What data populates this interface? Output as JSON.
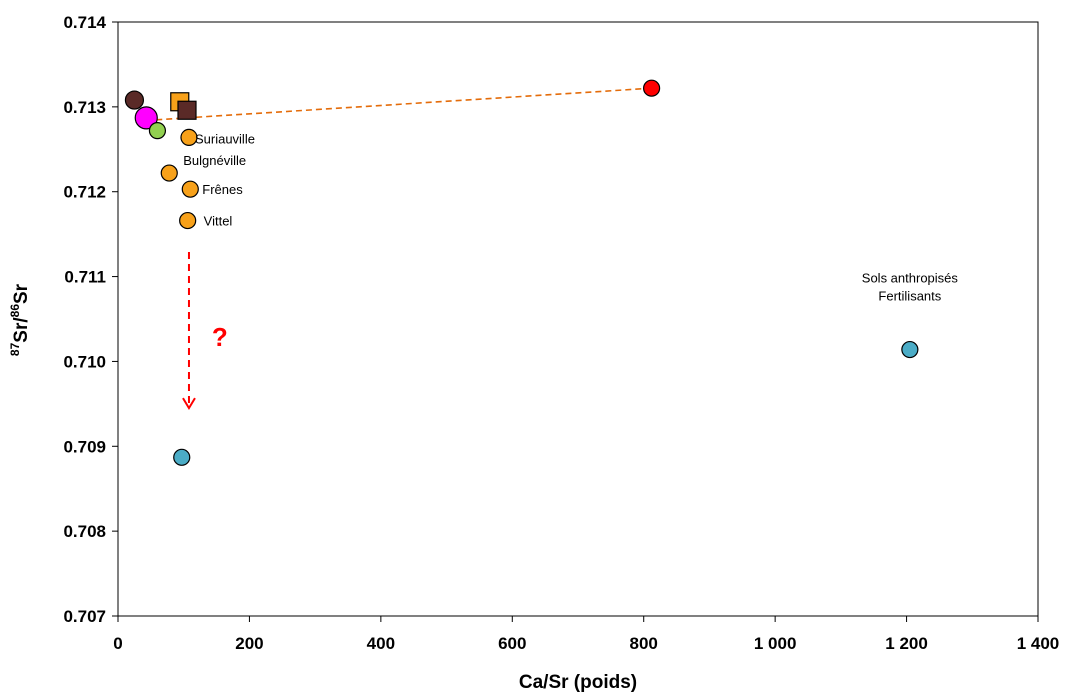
{
  "chart_data": {
    "type": "scatter",
    "title": "",
    "xlabel": "Ca/Sr (poids)",
    "ylabel_parts": {
      "sup1": "87",
      "main1": "Sr/",
      "sup2": "86",
      "main2": "Sr"
    },
    "xlim": [
      0,
      1400
    ],
    "ylim": [
      0.707,
      0.714
    ],
    "x_ticks": [
      0,
      200,
      400,
      600,
      800,
      1000,
      1200,
      1400
    ],
    "x_tick_labels": [
      "0",
      "200",
      "400",
      "600",
      "800",
      "1 000",
      "1 200",
      "1 400"
    ],
    "y_ticks": [
      0.707,
      0.708,
      0.709,
      0.71,
      0.711,
      0.712,
      0.713,
      0.714
    ],
    "y_tick_labels": [
      "0.707",
      "0.708",
      "0.709",
      "0.710",
      "0.711",
      "0.712",
      "0.713",
      "0.714"
    ],
    "grid": false,
    "colors": {
      "orange": "#f7a11a",
      "dark_brown": "#5a2a27",
      "green": "#92d050",
      "magenta": "#ff00ff",
      "red": "#ff0000",
      "teal": "#4bacc6",
      "mixing_line": "#e46c0a",
      "arrow": "#ff0000"
    },
    "points": [
      {
        "x": 25,
        "y": 0.71308,
        "shape": "circle",
        "color": "#5a2a27",
        "size": 9
      },
      {
        "x": 94,
        "y": 0.71306,
        "shape": "square",
        "color": "#f7a11a",
        "size": 9
      },
      {
        "x": 105,
        "y": 0.71296,
        "shape": "square",
        "color": "#5a2a27",
        "size": 9
      },
      {
        "x": 43,
        "y": 0.71287,
        "shape": "circle",
        "color": "#ff00ff",
        "size": 11
      },
      {
        "x": 60,
        "y": 0.71272,
        "shape": "circle",
        "color": "#92d050",
        "size": 8
      },
      {
        "x": 108,
        "y": 0.71264,
        "shape": "circle",
        "color": "#f7a11a",
        "size": 8,
        "label": "Suriauville"
      },
      {
        "x": 78,
        "y": 0.71222,
        "shape": "circle",
        "color": "#f7a11a",
        "size": 8,
        "label": "Bulgnéville"
      },
      {
        "x": 110,
        "y": 0.71203,
        "shape": "circle",
        "color": "#f7a11a",
        "size": 8,
        "label": "Frênes"
      },
      {
        "x": 106,
        "y": 0.71166,
        "shape": "circle",
        "color": "#f7a11a",
        "size": 8,
        "label": "Vittel"
      },
      {
        "x": 812,
        "y": 0.71322,
        "shape": "circle",
        "color": "#ff0000",
        "size": 8
      },
      {
        "x": 97,
        "y": 0.70887,
        "shape": "circle",
        "color": "#4bacc6",
        "size": 8
      },
      {
        "x": 1205,
        "y": 0.71014,
        "shape": "circle",
        "color": "#4bacc6",
        "size": 8
      }
    ],
    "mixing_line": {
      "x1": 43,
      "y1": 0.71284,
      "x2": 812,
      "y2": 0.71322
    },
    "arrow": {
      "x": 108,
      "y_start": 0.71129,
      "y_end": 0.70945,
      "label": "?",
      "label_x": 155,
      "label_y": 0.71018
    },
    "annotation_group": {
      "x": 1205,
      "lines": [
        "Sols anthropisés",
        "Fertilisants"
      ],
      "y_top": 0.71093
    }
  }
}
